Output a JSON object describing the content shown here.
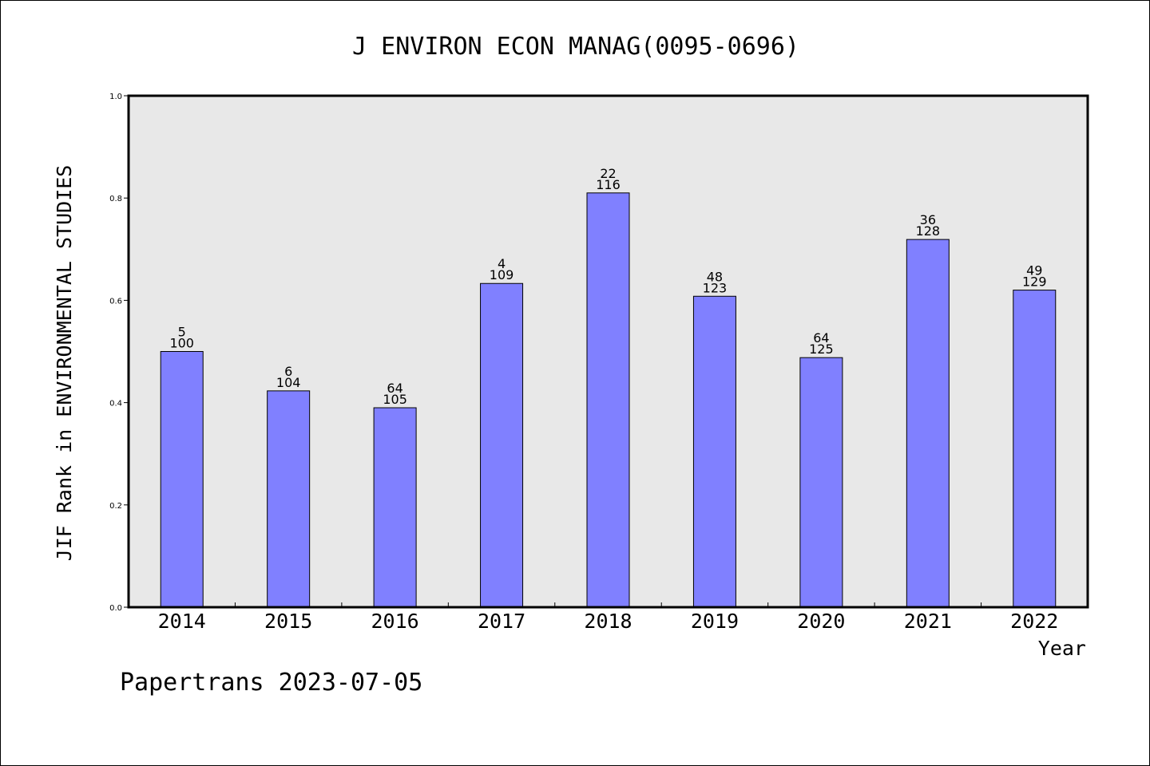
{
  "chart_data": {
    "type": "bar",
    "title": "J ENVIRON ECON MANAG(0095-0696)",
    "ylabel": "JIF Rank in ENVIRONMENTAL STUDIES",
    "xlabel": "Year",
    "ylim": [
      0,
      1.0
    ],
    "yticks": [
      "0.0",
      "0.2",
      "0.4",
      "0.6",
      "0.8",
      "1.0"
    ],
    "ytick_values": [
      0,
      0.2,
      0.4,
      0.6,
      0.8,
      1.0
    ],
    "grid": false,
    "categories": [
      "2014",
      "2015",
      "2016",
      "2017",
      "2018",
      "2019",
      "2020",
      "2021",
      "2022"
    ],
    "values": [
      0.5,
      0.423,
      0.39,
      0.633,
      0.81,
      0.608,
      0.488,
      0.719,
      0.62
    ],
    "rank": [
      "5",
      "6",
      "64",
      "4",
      "22",
      "48",
      "64",
      "36",
      "49"
    ],
    "total": [
      "100",
      "104",
      "105",
      "109",
      "116",
      "123",
      "125",
      "128",
      "129"
    ],
    "colors": {
      "bar": "#8080ff",
      "plot_background": "#e8e8e8",
      "axis": "#000000"
    }
  },
  "footer": "Papertrans 2023-07-05"
}
